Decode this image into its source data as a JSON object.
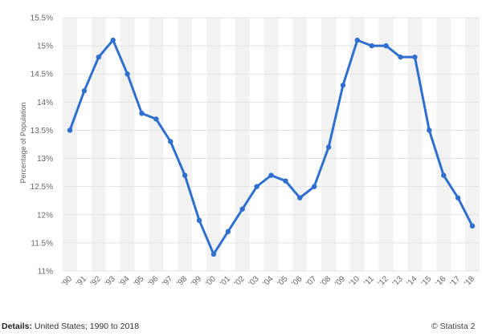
{
  "chart_data": {
    "type": "line",
    "title": "",
    "xlabel": "",
    "ylabel": "Percentage of Population",
    "categories": [
      "'90",
      "'91",
      "'92",
      "'93",
      "'94",
      "'95",
      "'96",
      "'97",
      "'98",
      "'99",
      "'00",
      "'01",
      "'02",
      "'03",
      "'04",
      "'05",
      "'06",
      "'07",
      "'08",
      "'09",
      "'10",
      "'11",
      "'12",
      "'13",
      "'14",
      "'15",
      "'16",
      "'17",
      "'18"
    ],
    "values": [
      13.5,
      14.2,
      14.8,
      15.1,
      14.5,
      13.8,
      13.7,
      13.3,
      12.7,
      11.9,
      11.3,
      11.7,
      12.1,
      12.5,
      12.7,
      12.6,
      12.3,
      12.5,
      13.2,
      14.3,
      15.1,
      15.0,
      15.0,
      14.8,
      14.8,
      13.5,
      12.7,
      12.3,
      11.8
    ],
    "ylim": [
      11,
      15.5
    ],
    "yticks": [
      "11%",
      "11.5%",
      "12%",
      "12.5%",
      "13%",
      "13.5%",
      "14%",
      "14.5%",
      "15%",
      "15.5%"
    ],
    "ytick_values": [
      11,
      11.5,
      12,
      12.5,
      13,
      13.5,
      14,
      14.5,
      15,
      15.5
    ],
    "grid": true,
    "line_color": "#2f6fcf",
    "band_color": "#f2f2f2"
  },
  "footer": {
    "details_label": "Details:",
    "details_text": "United States; 1990 to 2018",
    "credit": "© Statista 2"
  }
}
